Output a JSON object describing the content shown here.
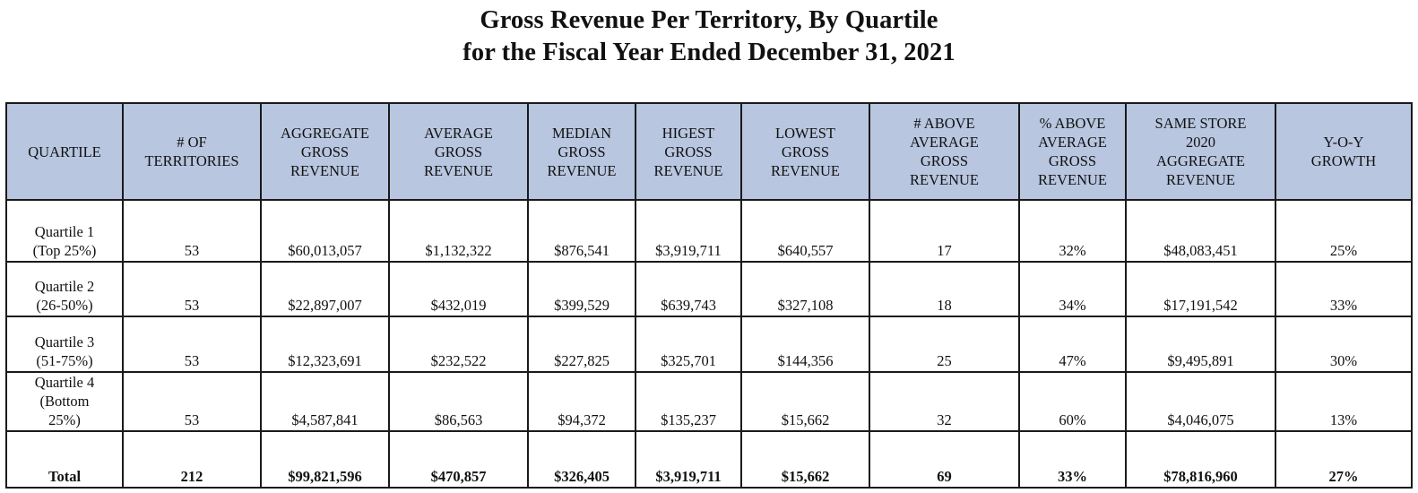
{
  "title": {
    "line1": "Gross Revenue Per Territory, By Quartile",
    "line2": "for the Fiscal Year Ended December 31, 2021"
  },
  "colors": {
    "header_bg": "#b8c6e0",
    "border": "#1a1a1a"
  },
  "table": {
    "headers": [
      [
        "QUARTILE"
      ],
      [
        "# OF",
        "TERRITORIES"
      ],
      [
        "AGGREGATE",
        "GROSS",
        "REVENUE"
      ],
      [
        "AVERAGE",
        "GROSS",
        "REVENUE"
      ],
      [
        "MEDIAN",
        "GROSS",
        "REVENUE"
      ],
      [
        "HIGEST",
        "GROSS",
        "REVENUE"
      ],
      [
        "LOWEST",
        "GROSS",
        "REVENUE"
      ],
      [
        "# ABOVE",
        "AVERAGE",
        "GROSS",
        "REVENUE"
      ],
      [
        "% ABOVE",
        "AVERAGE",
        "GROSS",
        "REVENUE"
      ],
      [
        "SAME STORE",
        "2020",
        "AGGREGATE",
        "REVENUE"
      ],
      [
        "Y-O-Y",
        "GROWTH"
      ]
    ],
    "rows": [
      {
        "label": [
          "Quartile 1",
          "(Top 25%)"
        ],
        "cells": [
          "53",
          "$60,013,057",
          "$1,132,322",
          "$876,541",
          "$3,919,711",
          "$640,557",
          "17",
          "32%",
          "$48,083,451",
          "25%"
        ]
      },
      {
        "label": [
          "Quartile 2",
          "(26-50%)"
        ],
        "cells": [
          "53",
          "$22,897,007",
          "$432,019",
          "$399,529",
          "$639,743",
          "$327,108",
          "18",
          "34%",
          "$17,191,542",
          "33%"
        ]
      },
      {
        "label": [
          "Quartile 3",
          "(51-75%)"
        ],
        "cells": [
          "53",
          "$12,323,691",
          "$232,522",
          "$227,825",
          "$325,701",
          "$144,356",
          "25",
          "47%",
          "$9,495,891",
          "30%"
        ]
      },
      {
        "label": [
          "Quartile 4",
          "(Bottom",
          "25%)"
        ],
        "cells": [
          "53",
          "$4,587,841",
          "$86,563",
          "$94,372",
          "$135,237",
          "$15,662",
          "32",
          "60%",
          "$4,046,075",
          "13%"
        ]
      }
    ],
    "total": {
      "label": "Total",
      "cells": [
        "212",
        "$99,821,596",
        "$470,857",
        "$326,405",
        "$3,919,711",
        "$15,662",
        "69",
        "33%",
        "$78,816,960",
        "27%"
      ]
    }
  }
}
